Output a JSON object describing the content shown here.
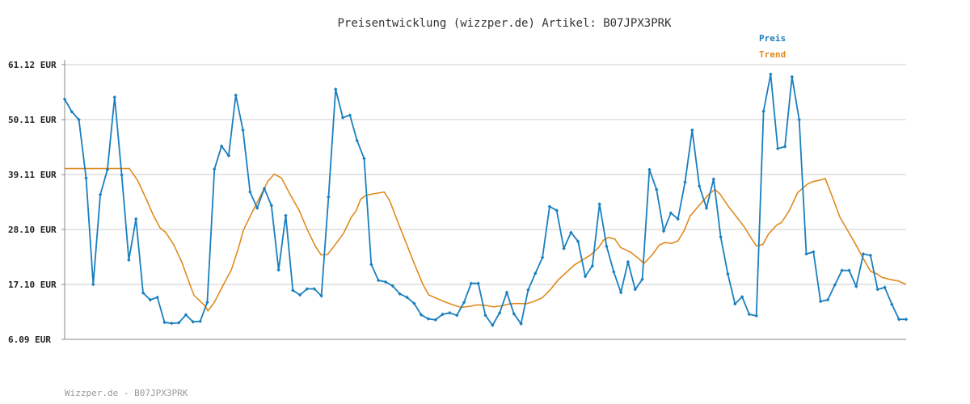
{
  "chart_data": {
    "type": "line",
    "title": "Preisentwicklung (wizzper.de) Artikel: B07JPX3PRK",
    "xlabel": "",
    "ylabel": "",
    "yticks": [
      "6.09 EUR",
      "17.10 EUR",
      "28.10 EUR",
      "39.11 EUR",
      "50.11 EUR",
      "61.12 EUR"
    ],
    "ylim": [
      6.09,
      61.12
    ],
    "grid": true,
    "legend_position": "top-right",
    "colors": {
      "preis": "#1a7fbf",
      "trend": "#e08a1e",
      "grid": "#dddddd",
      "axis": "#888888"
    },
    "series": [
      {
        "name": "Preis",
        "values": [
          54.2,
          51.7,
          50.1,
          38.4,
          17.1,
          35.1,
          40.1,
          54.6,
          39.0,
          22.0,
          30.2,
          15.4,
          14.0,
          14.5,
          9.5,
          9.3,
          9.4,
          11.0,
          9.6,
          9.7,
          13.5,
          40.2,
          44.8,
          42.9,
          55.0,
          48.0,
          35.6,
          32.4,
          36.3,
          32.9,
          20.0,
          30.9,
          15.9,
          15.0,
          16.2,
          16.2,
          14.8,
          34.6,
          56.2,
          50.5,
          51.0,
          45.9,
          42.3,
          21.1,
          17.9,
          17.6,
          16.8,
          15.2,
          14.5,
          13.3,
          11.0,
          10.2,
          10.0,
          11.1,
          11.4,
          10.9,
          13.5,
          17.3,
          17.3,
          10.9,
          8.9,
          11.4,
          15.5,
          11.2,
          9.2,
          16.0,
          19.3,
          22.5,
          32.7,
          31.9,
          24.3,
          27.5,
          25.7,
          18.7,
          20.8,
          33.2,
          24.7,
          19.6,
          15.5,
          21.6,
          16.1,
          18.1,
          40.1,
          36.1,
          27.8,
          31.4,
          30.2,
          37.6,
          48.0,
          36.8,
          32.4,
          38.2,
          26.6,
          19.2,
          13.2,
          14.6,
          11.1,
          10.8,
          51.8,
          59.2,
          44.3,
          44.7,
          58.7,
          50.1,
          23.2,
          23.6,
          13.7,
          14.0,
          17.0,
          19.9,
          19.9,
          16.7,
          23.2,
          22.9,
          16.1,
          16.5,
          13.1,
          10.1,
          10.1
        ],
        "x_start": 0,
        "x_end": 1
      },
      {
        "name": "Trend",
        "points": [
          [
            0,
            40.3
          ],
          [
            0.0769,
            40.3
          ],
          [
            0.0865,
            38.0
          ],
          [
            0.0962,
            34.5
          ],
          [
            0.1058,
            30.8
          ],
          [
            0.1135,
            28.4
          ],
          [
            0.1202,
            27.5
          ],
          [
            0.1298,
            25.0
          ],
          [
            0.1394,
            21.5
          ],
          [
            0.149,
            17.0
          ],
          [
            0.1538,
            14.9
          ],
          [
            0.1663,
            12.9
          ],
          [
            0.1702,
            11.8
          ],
          [
            0.1779,
            13.5
          ],
          [
            0.1885,
            17.0
          ],
          [
            0.1981,
            20.0
          ],
          [
            0.2067,
            24.5
          ],
          [
            0.2125,
            28.0
          ],
          [
            0.2221,
            31.3
          ],
          [
            0.2308,
            34.2
          ],
          [
            0.2413,
            37.7
          ],
          [
            0.249,
            39.2
          ],
          [
            0.2577,
            38.4
          ],
          [
            0.2683,
            35.0
          ],
          [
            0.2788,
            31.9
          ],
          [
            0.2885,
            28.0
          ],
          [
            0.2981,
            24.7
          ],
          [
            0.3048,
            23.0
          ],
          [
            0.3125,
            23.1
          ],
          [
            0.3212,
            25.0
          ],
          [
            0.3317,
            27.4
          ],
          [
            0.3404,
            30.5
          ],
          [
            0.3462,
            31.8
          ],
          [
            0.3519,
            34.2
          ],
          [
            0.3587,
            35.0
          ],
          [
            0.3692,
            35.3
          ],
          [
            0.3798,
            35.6
          ],
          [
            0.3865,
            33.8
          ],
          [
            0.3962,
            29.5
          ],
          [
            0.4067,
            25.0
          ],
          [
            0.4173,
            20.5
          ],
          [
            0.426,
            17.0
          ],
          [
            0.4327,
            15.0
          ],
          [
            0.4423,
            14.3
          ],
          [
            0.4519,
            13.6
          ],
          [
            0.4615,
            13.0
          ],
          [
            0.4712,
            12.5
          ],
          [
            0.4808,
            12.7
          ],
          [
            0.4904,
            13.0
          ],
          [
            0.5,
            12.9
          ],
          [
            0.5096,
            12.6
          ],
          [
            0.5192,
            12.8
          ],
          [
            0.5288,
            13.2
          ],
          [
            0.5385,
            13.3
          ],
          [
            0.5481,
            13.2
          ],
          [
            0.5577,
            13.7
          ],
          [
            0.5673,
            14.4
          ],
          [
            0.5769,
            16.0
          ],
          [
            0.5865,
            18.0
          ],
          [
            0.5962,
            19.5
          ],
          [
            0.6058,
            21.0
          ],
          [
            0.6154,
            22.0
          ],
          [
            0.625,
            23.0
          ],
          [
            0.6346,
            24.5
          ],
          [
            0.6404,
            26.0
          ],
          [
            0.6462,
            26.5
          ],
          [
            0.6538,
            26.2
          ],
          [
            0.6606,
            24.5
          ],
          [
            0.6731,
            23.5
          ],
          [
            0.6827,
            22.2
          ],
          [
            0.6885,
            21.3
          ],
          [
            0.6981,
            23.0
          ],
          [
            0.7067,
            25.0
          ],
          [
            0.7135,
            25.5
          ],
          [
            0.7212,
            25.3
          ],
          [
            0.7288,
            25.8
          ],
          [
            0.7365,
            28.0
          ],
          [
            0.7433,
            30.8
          ],
          [
            0.7538,
            32.9
          ],
          [
            0.7596,
            34.0
          ],
          [
            0.7663,
            35.3
          ],
          [
            0.7731,
            36.1
          ],
          [
            0.7788,
            35.2
          ],
          [
            0.7885,
            32.8
          ],
          [
            0.7981,
            30.7
          ],
          [
            0.8077,
            28.6
          ],
          [
            0.8173,
            26.0
          ],
          [
            0.8221,
            24.8
          ],
          [
            0.8298,
            25.1
          ],
          [
            0.8365,
            27.2
          ],
          [
            0.8462,
            29.0
          ],
          [
            0.8519,
            29.5
          ],
          [
            0.8615,
            32.0
          ],
          [
            0.8712,
            35.5
          ],
          [
            0.8827,
            37.2
          ],
          [
            0.8894,
            37.7
          ],
          [
            0.8981,
            38.0
          ],
          [
            0.9038,
            38.3
          ],
          [
            0.9115,
            35.0
          ],
          [
            0.9212,
            30.6
          ],
          [
            0.9308,
            27.8
          ],
          [
            0.9404,
            25.0
          ],
          [
            0.95,
            22.0
          ],
          [
            0.9577,
            19.7
          ],
          [
            0.9654,
            19.2
          ],
          [
            0.9712,
            18.5
          ],
          [
            0.9808,
            18.1
          ],
          [
            0.9904,
            17.8
          ],
          [
            1.0,
            17.1
          ]
        ],
        "x_start": 0,
        "x_end": 1
      }
    ]
  },
  "footer": "Wizzper.de - B07JPX3PRK"
}
